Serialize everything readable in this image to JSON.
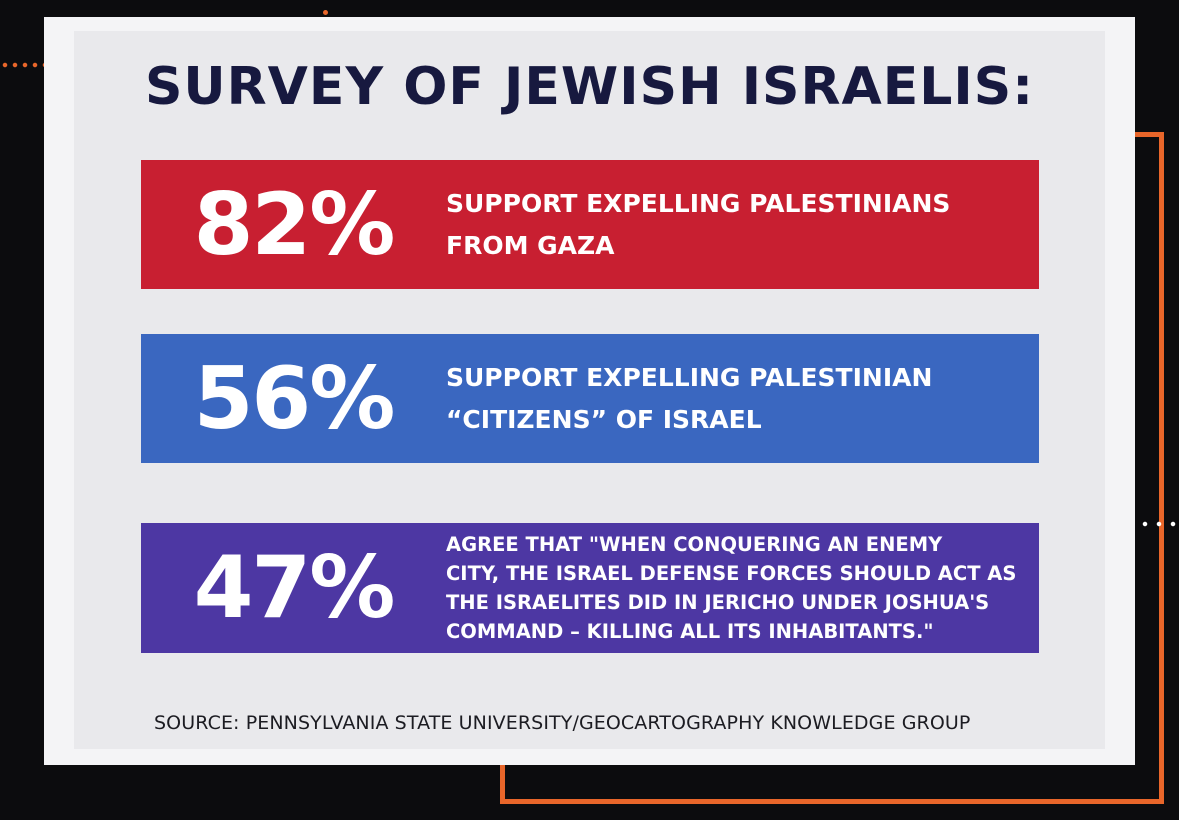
{
  "title": "SURVEY OF JEWISH ISRAELIS:",
  "stats": [
    {
      "percent": "82%",
      "lines": [
        "SUPPORT EXPELLING PALESTINIANS",
        "FROM GAZA"
      ],
      "color": "#c81f31"
    },
    {
      "percent": "56%",
      "lines": [
        "SUPPORT EXPELLING PALESTINIAN",
        "“CITIZENS” OF ISRAEL"
      ],
      "color": "#3a67c0"
    },
    {
      "percent": "47%",
      "lines": [
        "AGREE THAT \"WHEN CONQUERING AN ENEMY",
        "CITY, THE ISRAEL DEFENSE FORCES SHOULD ACT AS",
        "THE ISRAELITES DID IN JERICHO UNDER JOSHUA'S",
        "COMMAND – KILLING ALL ITS INHABITANTS.\""
      ],
      "color": "#4d37a3"
    }
  ],
  "source": "SOURCE: PENNSYLVANIA STATE UNIVERSITY/GEOCARTOGRAPHY KNOWLEDGE GROUP",
  "colors": {
    "background": "#0c0c0e",
    "accent": "#e8662a",
    "title": "#17193f"
  }
}
